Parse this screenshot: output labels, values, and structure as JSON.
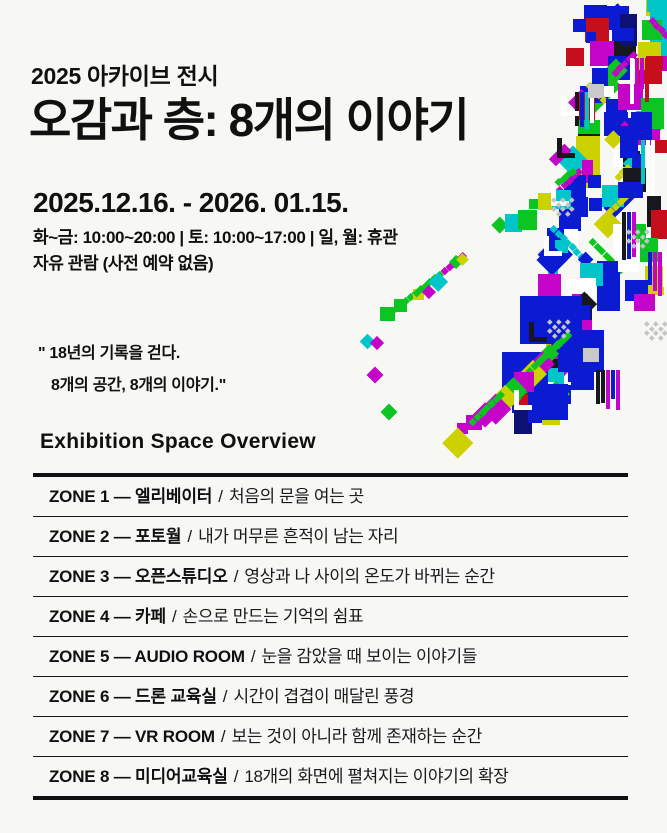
{
  "header": {
    "eyebrow": "2025 아카이브 전시",
    "title": "오감과 층: 8개의 이야기"
  },
  "info": {
    "dates": "2025.12.16. - 2026. 01.15.",
    "hours": "화~금: 10:00~20:00 | 토: 10:00~17:00 | 일, 월: 휴관",
    "admission": "자유 관람 (사전 예약 없음)"
  },
  "quote": {
    "line1": "\" 18년의 기록을 걷다.",
    "line2": "8개의 공간, 8개의 이야기.\""
  },
  "overview": {
    "heading": "Exhibition Space Overview"
  },
  "zones": [
    {
      "label": "ZONE 1 — 엘리베이터",
      "separator": "/",
      "desc": "처음의 문을 여는 곳"
    },
    {
      "label": "ZONE 2 — 포토월",
      "separator": "/",
      "desc": "내가 머무른 흔적이 남는 자리"
    },
    {
      "label": "ZONE 3 — 오픈스튜디오",
      "separator": "/",
      "desc": "영상과 나 사이의 온도가 바뀌는 순간"
    },
    {
      "label": "ZONE 4 — 카페",
      "separator": "/",
      "desc": "손으로 만드는 기억의 쉼표"
    },
    {
      "label": "ZONE 5 — AUDIO ROOM",
      "separator": "/",
      "desc": "눈을 감았을 때 보이는 이야기들"
    },
    {
      "label": "ZONE 6 — 드론 교육실",
      "separator": "/",
      "desc": "시간이 겹겹이 매달린 풍경"
    },
    {
      "label": "ZONE 7 — VR ROOM",
      "separator": "/",
      "desc": "보는 것이 아니라 함께 존재하는 순간"
    },
    {
      "label": "ZONE 8 — 미디어교육실",
      "separator": "/",
      "desc": "18개의 화면에 펼쳐지는 이야기의 확장"
    }
  ],
  "decor": {
    "palette": [
      "#0a1bd1",
      "#c404c9",
      "#0cc522",
      "#c60f1d",
      "#00c5c9",
      "#cdd100",
      "#17181d",
      "#ffffff",
      "#c9c9c9",
      "#0c1173"
    ],
    "checker": "#c4c4c4",
    "background": "#f7f7f4",
    "text_color": "#101010"
  }
}
